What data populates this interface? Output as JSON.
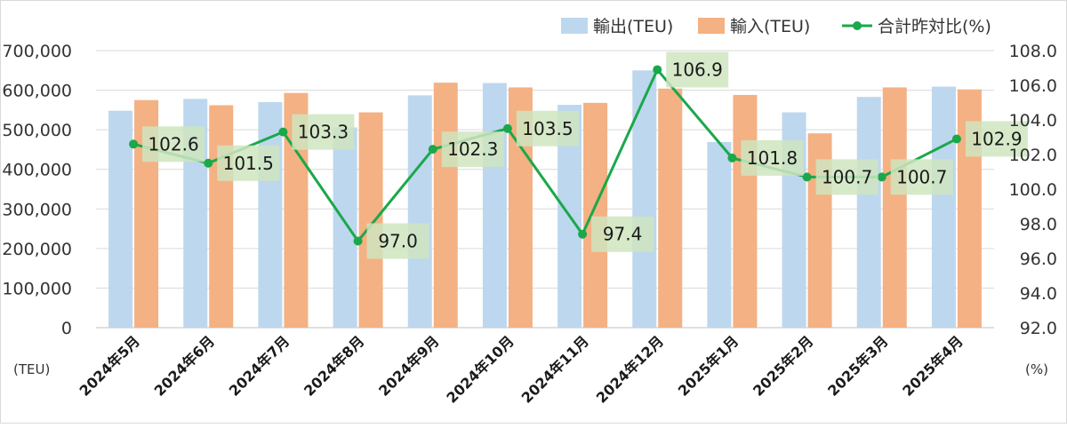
{
  "chart_data": {
    "type": "bar",
    "categories": [
      "2024年5月",
      "2024年6月",
      "2024年7月",
      "2024年8月",
      "2024年9月",
      "2024年10月",
      "2024年11月",
      "2024年12月",
      "2025年1月",
      "2025年2月",
      "2025年3月",
      "2025年4月"
    ],
    "series": [
      {
        "name": "輸出(TEU)",
        "type": "bar",
        "axis": "left",
        "color": "#bdd7ee",
        "values": [
          548000,
          578000,
          570000,
          506000,
          587000,
          618000,
          563000,
          650000,
          469000,
          544000,
          583000,
          609000
        ]
      },
      {
        "name": "輸入(TEU)",
        "type": "bar",
        "axis": "left",
        "color": "#f4b183",
        "values": [
          575000,
          562000,
          593000,
          544000,
          619000,
          607000,
          568000,
          604000,
          588000,
          491000,
          607000,
          602000
        ]
      },
      {
        "name": "合計昨対比(%)",
        "type": "line",
        "axis": "right",
        "color": "#1aa84a",
        "values": [
          102.6,
          101.5,
          103.3,
          97.0,
          102.3,
          103.5,
          97.4,
          106.9,
          101.8,
          100.7,
          100.7,
          102.9
        ]
      }
    ],
    "left_axis": {
      "unit_label": "(TEU)",
      "ylim": [
        0,
        700000
      ],
      "ticks": [
        0,
        100000,
        200000,
        300000,
        400000,
        500000,
        600000,
        700000
      ],
      "tick_labels": [
        "0",
        "100,000",
        "200,000",
        "300,000",
        "400,000",
        "500,000",
        "600,000",
        "700,000"
      ]
    },
    "right_axis": {
      "unit_label": "(%)",
      "ylim": [
        92.0,
        108.0
      ],
      "ticks": [
        92.0,
        94.0,
        96.0,
        98.0,
        100.0,
        102.0,
        104.0,
        106.0,
        108.0
      ],
      "tick_labels": [
        "92.0",
        "94.0",
        "96.0",
        "98.0",
        "100.0",
        "102.0",
        "104.0",
        "106.0",
        "108.0"
      ]
    },
    "data_labels": [
      "102.6",
      "101.5",
      "103.3",
      "97.0",
      "102.3",
      "103.5",
      "97.4",
      "106.9",
      "101.8",
      "100.7",
      "100.7",
      "102.9"
    ],
    "data_label_bg": "#cfe5c0",
    "grid": true,
    "grid_color": "#d9d9d9",
    "legend_position": "top-right"
  }
}
